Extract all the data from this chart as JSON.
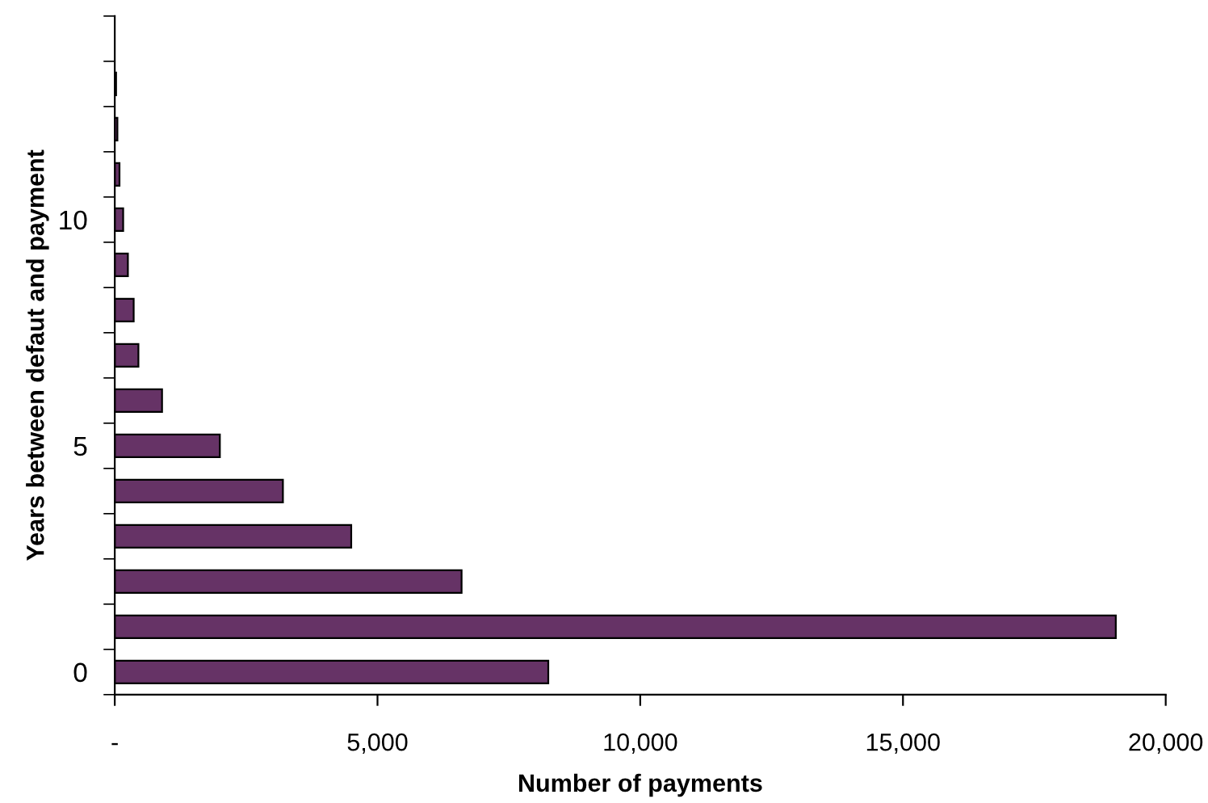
{
  "chart_data": {
    "type": "bar",
    "orientation": "horizontal",
    "xlabel": "Number of payments",
    "ylabel": "Years between defaut and payment",
    "categories": [
      null,
      null,
      null,
      null,
      "10",
      null,
      null,
      null,
      null,
      "5",
      null,
      null,
      null,
      null,
      "0"
    ],
    "values": [
      null,
      25,
      50,
      90,
      160,
      250,
      360,
      450,
      900,
      2000,
      3200,
      4500,
      6600,
      19050,
      8250
    ],
    "color": "#663366",
    "xlim": [
      0,
      20000
    ],
    "xticks": [
      {
        "value": 0,
        "label": "-"
      },
      {
        "value": 5000,
        "label": "5,000"
      },
      {
        "value": 10000,
        "label": "10,000"
      },
      {
        "value": 15000,
        "label": "15,000"
      },
      {
        "value": 20000,
        "label": "20,000"
      }
    ],
    "grid": false,
    "legend": false
  }
}
